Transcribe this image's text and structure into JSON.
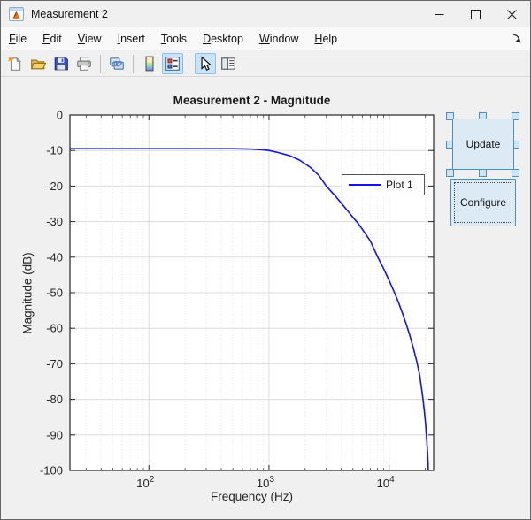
{
  "window": {
    "title": "Measurement 2",
    "controls": {
      "minimize": "minimize",
      "maximize": "maximize",
      "close": "close"
    }
  },
  "menu": {
    "items": [
      "File",
      "Edit",
      "View",
      "Insert",
      "Tools",
      "Desktop",
      "Window",
      "Help"
    ],
    "dock_icon": "dock-arrow"
  },
  "toolbar": {
    "icons": [
      "new-figure",
      "open-file",
      "save-figure",
      "print-figure",
      "link-plot",
      "insert-colorbar",
      "insert-legend",
      "edit-plot",
      "property-editor"
    ],
    "toggled_on": [
      "insert-legend",
      "edit-plot"
    ]
  },
  "figure": {
    "buttons": {
      "update": "Update",
      "configure": "Configure"
    }
  },
  "chart_data": {
    "type": "line",
    "title": "Measurement 2 - Magnitude",
    "xlabel": "Frequency (Hz)",
    "ylabel": "Magnitude (dB)",
    "x_scale": "log",
    "x_range": [
      22,
      23500
    ],
    "y_range": [
      -100,
      0
    ],
    "x_ticks": [
      {
        "v": 100,
        "label": "10",
        "exp": "2"
      },
      {
        "v": 1000,
        "label": "10",
        "exp": "3"
      },
      {
        "v": 10000,
        "label": "10",
        "exp": "4"
      }
    ],
    "y_ticks": [
      0,
      -10,
      -20,
      -30,
      -40,
      -50,
      -60,
      -70,
      -80,
      -90,
      -100
    ],
    "grid": true,
    "minor_grid": true,
    "legend": {
      "position": "east-inside",
      "entries": [
        "Plot 1"
      ]
    },
    "series": [
      {
        "name": "Plot 1",
        "color": "#1313e8",
        "points": [
          [
            22,
            -9.5
          ],
          [
            100,
            -9.5
          ],
          [
            300,
            -9.5
          ],
          [
            500,
            -9.5
          ],
          [
            700,
            -9.6
          ],
          [
            900,
            -9.8
          ],
          [
            1000,
            -10.0
          ],
          [
            1200,
            -10.6
          ],
          [
            1500,
            -11.5
          ],
          [
            1800,
            -12.7
          ],
          [
            2200,
            -14.7
          ],
          [
            2600,
            -17.0
          ],
          [
            3000,
            -20.0
          ],
          [
            3500,
            -22.5
          ],
          [
            4000,
            -24.8
          ],
          [
            4500,
            -26.9
          ],
          [
            5000,
            -28.8
          ],
          [
            5500,
            -30.4
          ],
          [
            6000,
            -32.2
          ],
          [
            7000,
            -35.5
          ],
          [
            8000,
            -39.8
          ],
          [
            9000,
            -43.2
          ],
          [
            10000,
            -46.5
          ],
          [
            11000,
            -49.7
          ],
          [
            12000,
            -52.8
          ],
          [
            13000,
            -56.0
          ],
          [
            14000,
            -59.2
          ],
          [
            15000,
            -62.4
          ],
          [
            16000,
            -65.8
          ],
          [
            17000,
            -69.3
          ],
          [
            18000,
            -73.3
          ],
          [
            19000,
            -79.0
          ],
          [
            19700,
            -83.5
          ],
          [
            20200,
            -87.5
          ],
          [
            20600,
            -91.5
          ],
          [
            20900,
            -95.0
          ],
          [
            21100,
            -98.0
          ],
          [
            21200,
            -100.0
          ]
        ]
      }
    ],
    "colors": {
      "axis": "#262626",
      "tick_text": "#262626",
      "grid": "#dcdcdc",
      "minor_grid": "#e7e7e7",
      "plot_bg": "#ffffff",
      "figure_bg": "#f0f0f0",
      "accent_blue": "#4a90c8",
      "button_fill": "#dceaf6"
    }
  }
}
